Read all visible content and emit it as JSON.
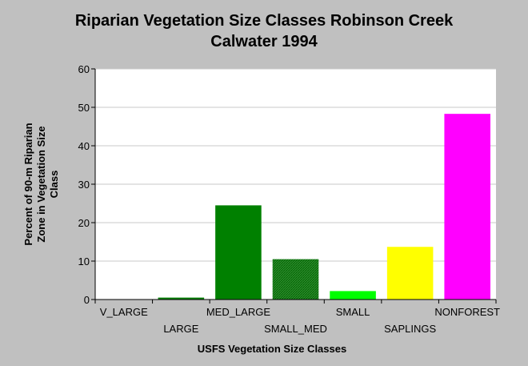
{
  "chart_data": {
    "type": "bar",
    "title_lines": [
      "Riparian Vegetation Size Classes Robinson Creek",
      "Calwater 1994"
    ],
    "xlabel": "USFS Vegetation Size Classes",
    "ylabel_lines": [
      "Percent of 90-m Riparian",
      "Zone in Vegetation Size",
      "Class"
    ],
    "categories": [
      "V_LARGE",
      "LARGE",
      "MED_LARGE",
      "SMALL_MED",
      "SMALL",
      "SAPLINGS",
      "NONFOREST"
    ],
    "values": [
      0,
      0.5,
      24.5,
      10.5,
      2.2,
      13.7,
      48.3
    ],
    "colors": [
      "#008000",
      "#008000",
      "#008000",
      "#008000",
      "#00ff00",
      "#ffff00",
      "#ff00ff"
    ],
    "hatched": [
      false,
      false,
      false,
      true,
      false,
      false,
      false
    ],
    "ylim": [
      0,
      60
    ],
    "yticks": [
      "0",
      "10",
      "20",
      "30",
      "40",
      "50",
      "60"
    ],
    "grid": true,
    "legend": "none"
  }
}
